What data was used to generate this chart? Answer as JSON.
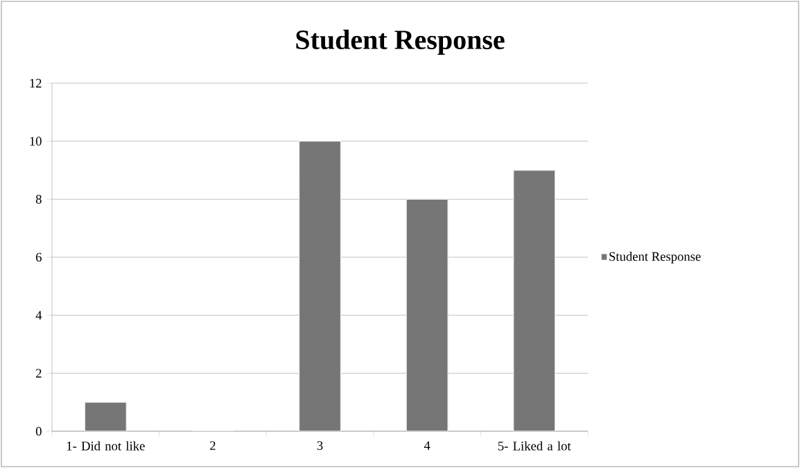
{
  "chart_data": {
    "type": "bar",
    "title": "Student Response",
    "categories": [
      "1- Did not like",
      "2",
      "3",
      "4",
      "5- Liked a lot"
    ],
    "series": [
      {
        "name": "Student Response",
        "color": "#767676",
        "values": [
          1,
          0,
          10,
          8,
          9
        ]
      }
    ],
    "ylim": [
      0,
      12
    ],
    "yticks": [
      0,
      2,
      4,
      6,
      8,
      10,
      12
    ],
    "grid": "y",
    "legend": "right"
  }
}
